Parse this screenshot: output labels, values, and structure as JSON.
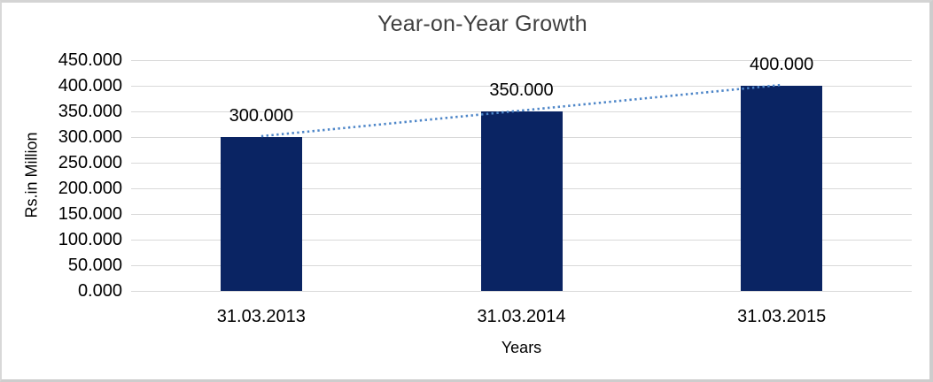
{
  "chart_data": {
    "type": "bar",
    "title": "Year-on-Year Growth",
    "xlabel": "Years",
    "ylabel": "Rs.in Million",
    "categories": [
      "31.03.2013",
      "31.03.2014",
      "31.03.2015"
    ],
    "values": [
      300,
      350,
      400
    ],
    "data_labels": [
      "300.000",
      "350.000",
      "400.000"
    ],
    "ylim": [
      0,
      450
    ],
    "y_tick_step": 50,
    "y_tick_labels": [
      "450.000",
      "400.000",
      "350.000",
      "300.000",
      "250.000",
      "200.000",
      "150.000",
      "100.000",
      "50.000",
      "0.000"
    ],
    "grid": true,
    "legend": false,
    "trendline": {
      "type": "linear",
      "style": "dotted"
    },
    "colors": {
      "bar": "#0a2463",
      "trendline": "#4e86c8",
      "gridline": "#d9d9d9",
      "frame_border": "#cdcdcd",
      "tick_text": "#000000",
      "title_text": "#3f3f3f",
      "background": "#ffffff"
    }
  }
}
